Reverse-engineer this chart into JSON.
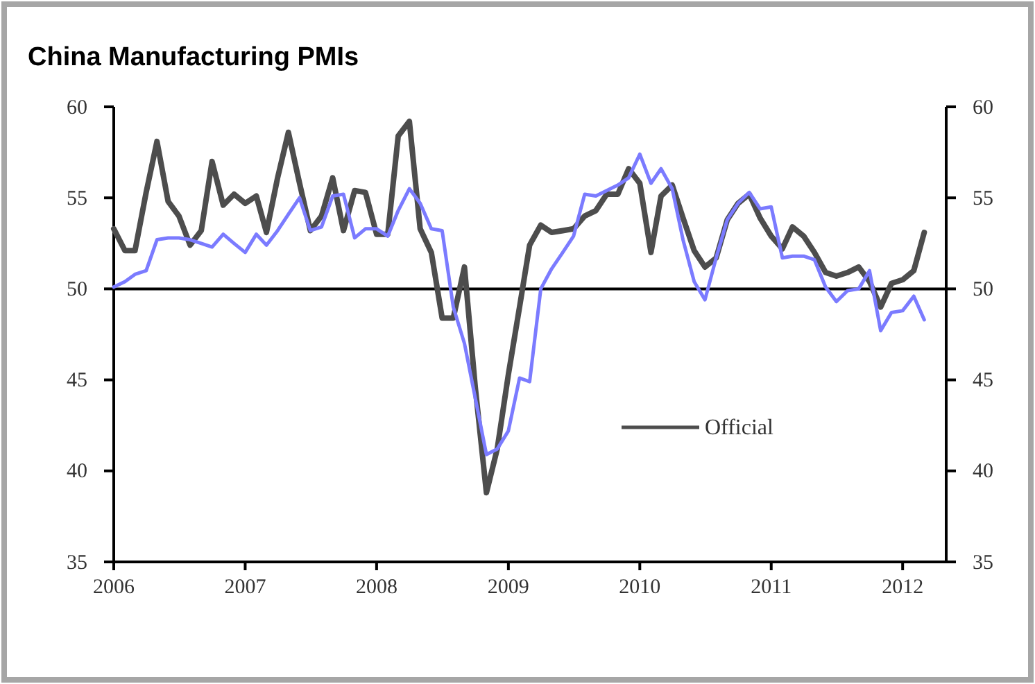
{
  "chart_data": {
    "type": "line",
    "title": "China Manufacturing PMIs",
    "x": [
      "2006-01",
      "2006-02",
      "2006-03",
      "2006-04",
      "2006-05",
      "2006-06",
      "2006-07",
      "2006-08",
      "2006-09",
      "2006-10",
      "2006-11",
      "2006-12",
      "2007-01",
      "2007-02",
      "2007-03",
      "2007-04",
      "2007-05",
      "2007-06",
      "2007-07",
      "2007-08",
      "2007-09",
      "2007-10",
      "2007-11",
      "2007-12",
      "2008-01",
      "2008-02",
      "2008-03",
      "2008-04",
      "2008-05",
      "2008-06",
      "2008-07",
      "2008-08",
      "2008-09",
      "2008-10",
      "2008-11",
      "2008-12",
      "2009-01",
      "2009-02",
      "2009-03",
      "2009-04",
      "2009-05",
      "2009-06",
      "2009-07",
      "2009-08",
      "2009-09",
      "2009-10",
      "2009-11",
      "2009-12",
      "2010-01",
      "2010-02",
      "2010-03",
      "2010-04",
      "2010-05",
      "2010-06",
      "2010-07",
      "2010-08",
      "2010-09",
      "2010-10",
      "2010-11",
      "2010-12",
      "2011-01",
      "2011-02",
      "2011-03",
      "2011-04",
      "2011-05",
      "2011-06",
      "2011-07",
      "2011-08",
      "2011-09",
      "2011-10",
      "2011-11",
      "2011-12",
      "2012-01",
      "2012-02",
      "2012-03"
    ],
    "series": [
      {
        "name": "Official",
        "color": "#4d4d4d",
        "values": [
          53.3,
          52.1,
          52.1,
          55.3,
          58.1,
          54.8,
          54.0,
          52.4,
          53.2,
          57.0,
          54.6,
          55.2,
          54.7,
          55.1,
          53.1,
          56.1,
          58.6,
          55.8,
          53.2,
          54.0,
          56.1,
          53.2,
          55.4,
          55.3,
          53.0,
          53.0,
          58.4,
          59.2,
          53.3,
          52.0,
          48.4,
          48.4,
          51.2,
          44.6,
          38.8,
          41.2,
          45.3,
          49.0,
          52.4,
          53.5,
          53.1,
          53.2,
          53.3,
          54.0,
          54.3,
          55.2,
          55.2,
          56.6,
          55.8,
          52.0,
          55.1,
          55.7,
          53.9,
          52.1,
          51.2,
          51.7,
          53.8,
          54.7,
          55.2,
          53.9,
          52.9,
          52.2,
          53.4,
          52.9,
          52.0,
          50.9,
          50.7,
          50.9,
          51.2,
          50.4,
          49.0,
          50.3,
          50.5,
          51.0,
          53.1
        ]
      },
      {
        "color": "#7b7bff",
        "values": [
          50.1,
          50.4,
          50.8,
          51.0,
          52.7,
          52.8,
          52.8,
          52.7,
          52.5,
          52.3,
          53.0,
          52.5,
          52.0,
          53.0,
          52.4,
          53.2,
          54.1,
          55.0,
          53.2,
          53.4,
          55.1,
          55.2,
          52.8,
          53.3,
          53.3,
          52.9,
          54.3,
          55.5,
          54.7,
          53.3,
          53.2,
          49.0,
          47.0,
          44.0,
          40.9,
          41.2,
          42.2,
          45.1,
          44.9,
          50.0,
          51.1,
          52.0,
          52.9,
          55.2,
          55.1,
          55.4,
          55.7,
          56.1,
          57.4,
          55.8,
          56.6,
          55.5,
          52.7,
          50.4,
          49.4,
          51.7,
          53.8,
          54.7,
          55.3,
          54.4,
          54.5,
          51.7,
          51.8,
          51.8,
          51.6,
          50.1,
          49.3,
          49.9,
          50.0,
          51.0,
          47.7,
          48.7,
          48.8,
          49.6,
          48.3
        ]
      }
    ],
    "xlim": [
      "2006-01",
      "2012-05"
    ],
    "xticks": [
      {
        "value": "2006-01",
        "label": "2006"
      },
      {
        "value": "2007-01",
        "label": "2007"
      },
      {
        "value": "2008-01",
        "label": "2008"
      },
      {
        "value": "2009-01",
        "label": "2009"
      },
      {
        "value": "2010-01",
        "label": "2010"
      },
      {
        "value": "2011-01",
        "label": "2011"
      },
      {
        "value": "2012-01",
        "label": "2012"
      }
    ],
    "ylim": [
      35,
      60
    ],
    "yticks": [
      35,
      40,
      45,
      50,
      55,
      60
    ],
    "y2lim": [
      35,
      60
    ],
    "y2ticks": [
      35,
      40,
      45,
      50,
      55,
      60
    ],
    "ref_lines": [
      {
        "axis": "y",
        "value": 50,
        "color": "#000000"
      }
    ],
    "grid": false,
    "legend": "bottom right",
    "line_style": "solid",
    "marker": "none"
  }
}
